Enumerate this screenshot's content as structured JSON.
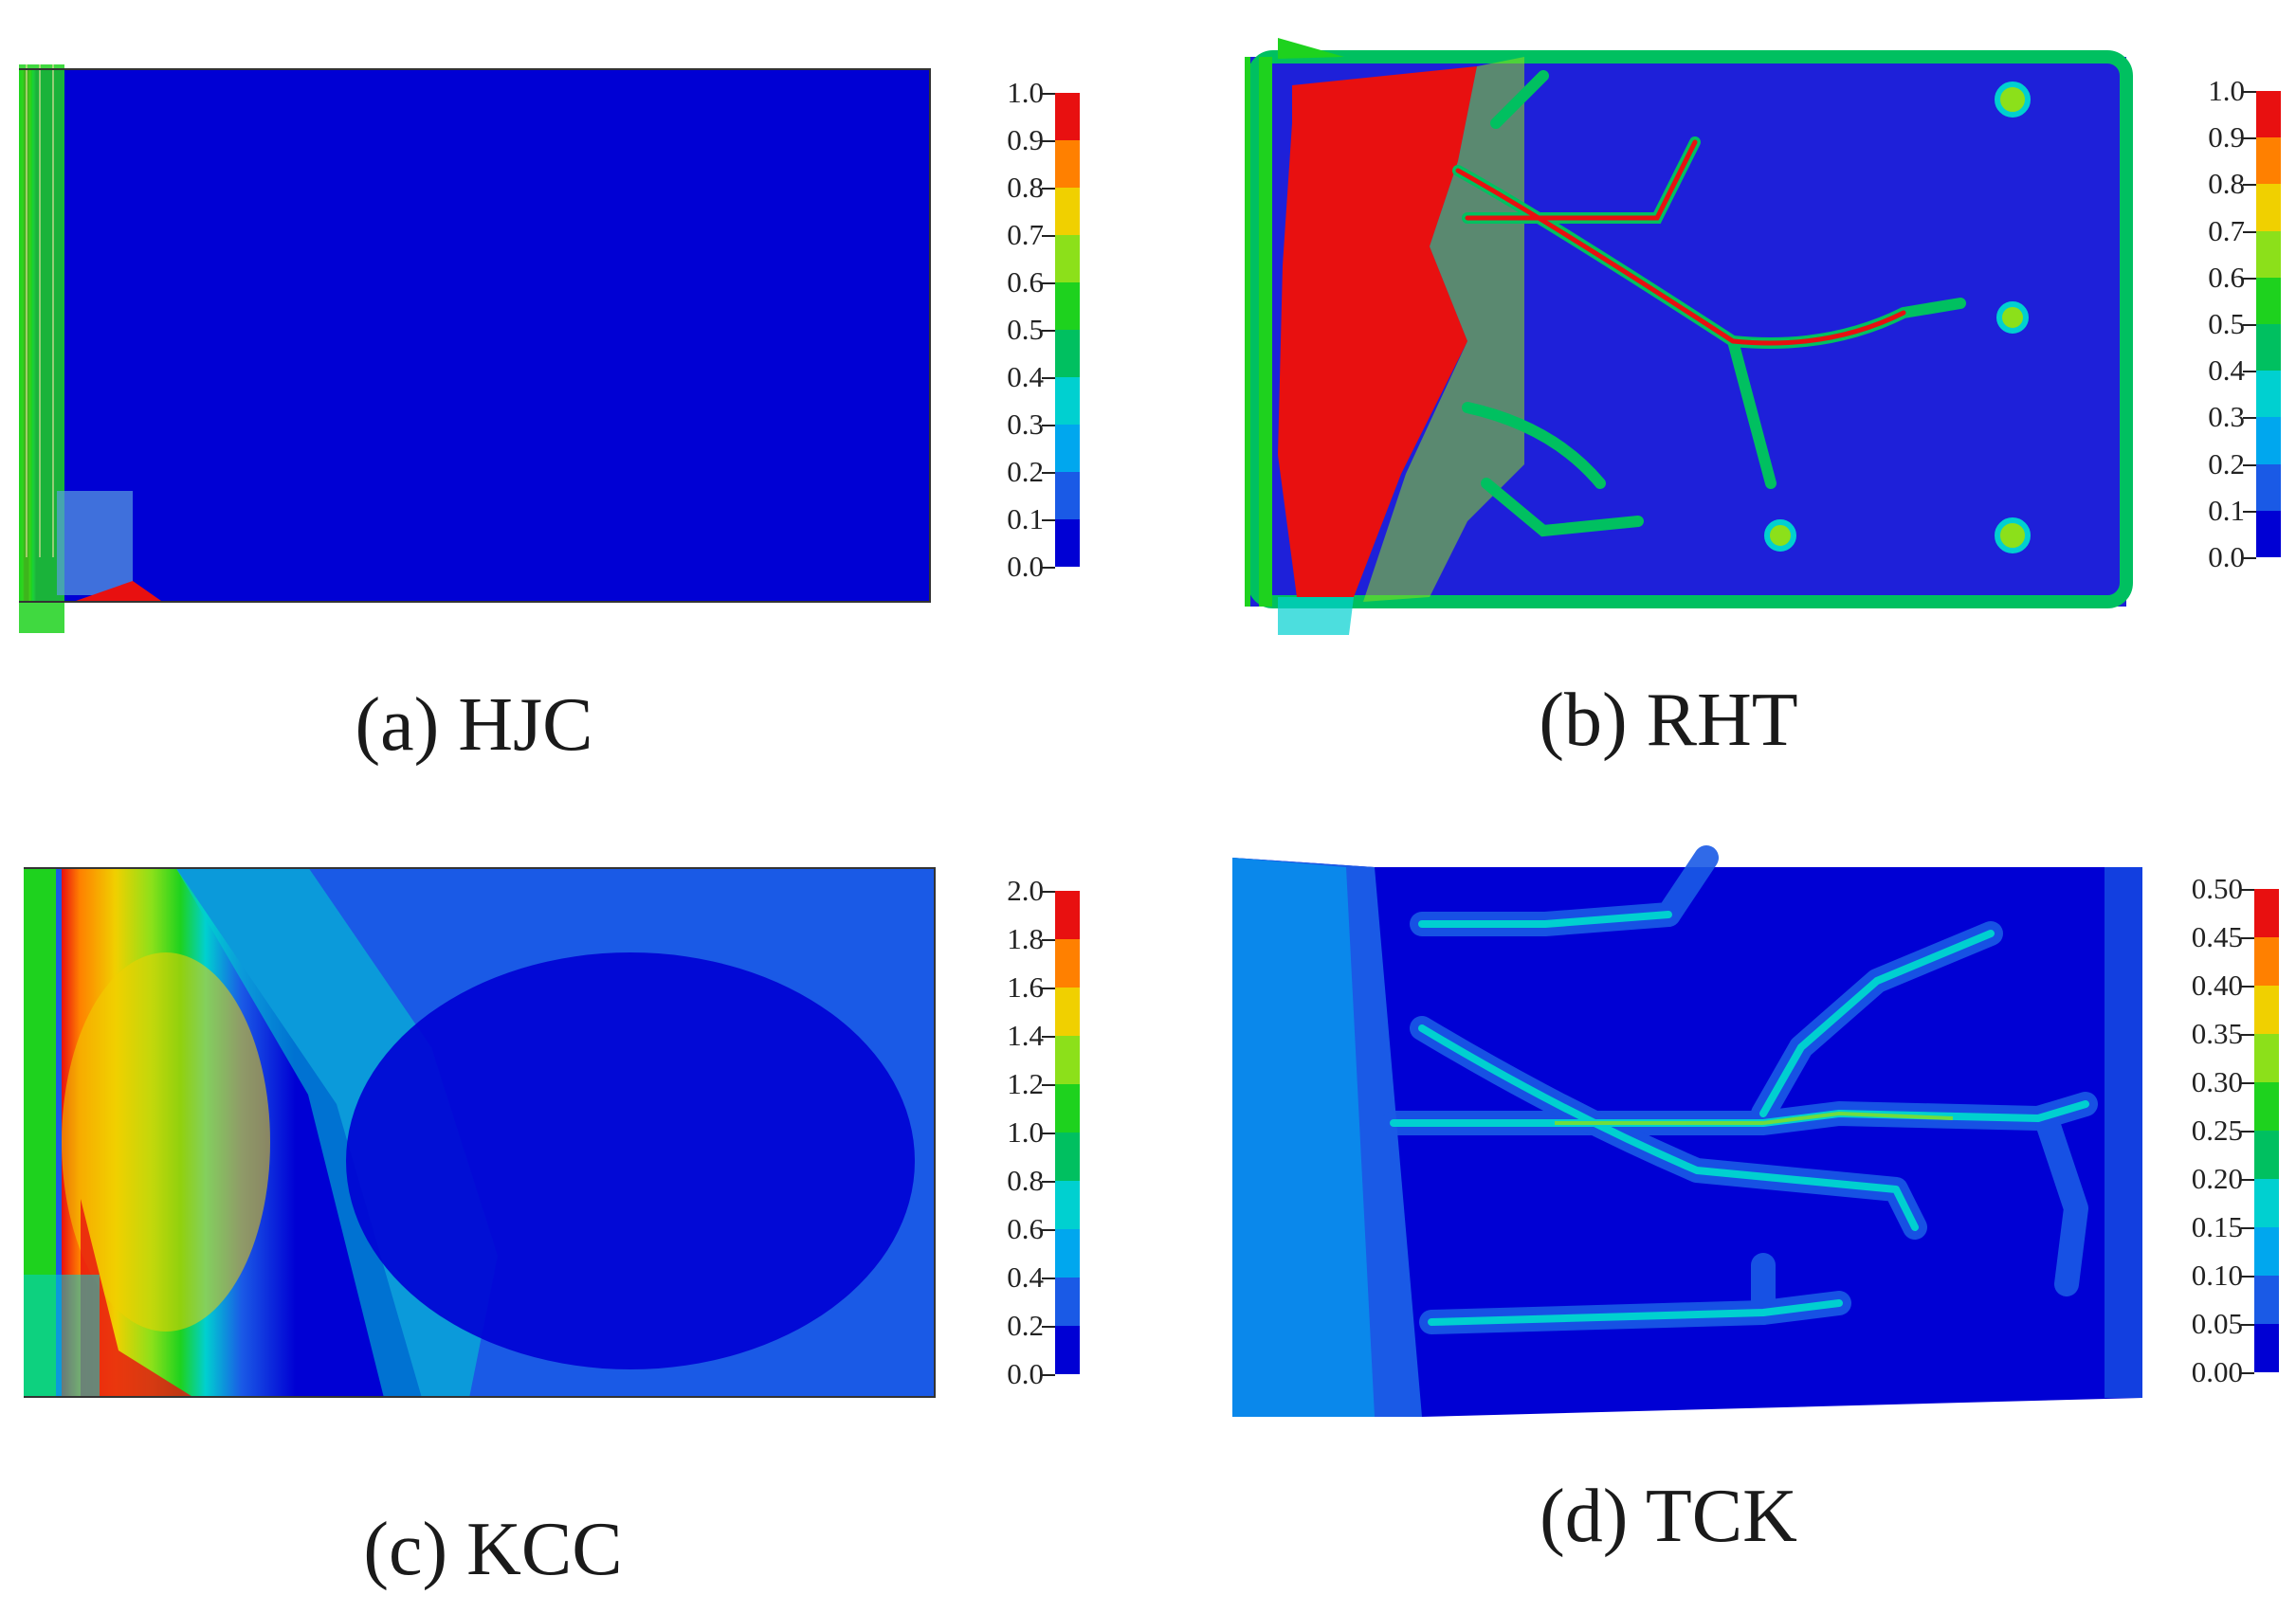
{
  "palette": [
    "#0000d4",
    "#1a5ae6",
    "#00a7ee",
    "#00d0d0",
    "#00c060",
    "#1ed21e",
    "#8ce01a",
    "#f0d000",
    "#ff8000",
    "#e81010"
  ],
  "panels": [
    {
      "id": "a",
      "caption": "(a) HJC",
      "ticks": [
        "1.0",
        "0.9",
        "0.8",
        "0.7",
        "0.6",
        "0.5",
        "0.4",
        "0.3",
        "0.2",
        "0.1",
        "0.0"
      ]
    },
    {
      "id": "b",
      "caption": "(b) RHT",
      "ticks": [
        "1.0",
        "0.9",
        "0.8",
        "0.7",
        "0.6",
        "0.5",
        "0.4",
        "0.3",
        "0.2",
        "0.1",
        "0.0"
      ]
    },
    {
      "id": "c",
      "caption": "(c) KCC",
      "ticks": [
        "2.0",
        "1.8",
        "1.6",
        "1.4",
        "1.2",
        "1.0",
        "0.8",
        "0.6",
        "0.4",
        "0.2",
        "0.0"
      ]
    },
    {
      "id": "d",
      "caption": "(d) TCK",
      "ticks": [
        "0.50",
        "0.45",
        "0.40",
        "0.35",
        "0.30",
        "0.25",
        "0.20",
        "0.15",
        "0.10",
        "0.05",
        "0.00"
      ]
    }
  ]
}
